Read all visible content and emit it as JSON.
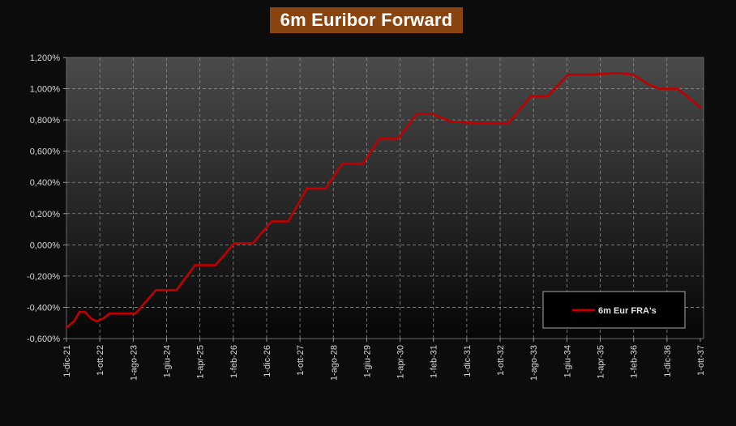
{
  "chart_data": {
    "type": "line",
    "title": "6m Euribor Forward",
    "xlabel": "",
    "ylabel": "",
    "ylim": [
      -0.6,
      1.2
    ],
    "y_ticks": [
      "-0,600%",
      "-0,400%",
      "-0,200%",
      "0,000%",
      "0,200%",
      "0,400%",
      "0,600%",
      "0,800%",
      "1,000%",
      "1,200%"
    ],
    "x_ticks": [
      "1-dic-21",
      "1-ott-22",
      "1-ago-23",
      "1-giu-24",
      "1-apr-25",
      "1-feb-26",
      "1-dic-26",
      "1-ott-27",
      "1-ago-28",
      "1-giu-29",
      "1-apr-30",
      "1-feb-31",
      "1-dic-31",
      "1-ott-32",
      "1-ago-33",
      "1-giu-34",
      "1-apr-35",
      "1-feb-36",
      "1-dic-36",
      "1-ott-37"
    ],
    "grid": true,
    "legend_position": "bottom-right",
    "series": [
      {
        "name": "6m Eur FRA's",
        "color": "#c00000",
        "points": [
          [
            0.0,
            -0.53
          ],
          [
            0.2,
            -0.49
          ],
          [
            0.35,
            -0.43
          ],
          [
            0.5,
            -0.43
          ],
          [
            0.65,
            -0.47
          ],
          [
            0.8,
            -0.49
          ],
          [
            1.0,
            -0.47
          ],
          [
            1.15,
            -0.44
          ],
          [
            1.85,
            -0.44
          ],
          [
            2.4,
            -0.29
          ],
          [
            2.95,
            -0.29
          ],
          [
            3.45,
            -0.13
          ],
          [
            4.0,
            -0.13
          ],
          [
            4.5,
            0.01
          ],
          [
            5.0,
            0.01
          ],
          [
            5.5,
            0.15
          ],
          [
            5.95,
            0.15
          ],
          [
            6.45,
            0.36
          ],
          [
            6.95,
            0.36
          ],
          [
            7.4,
            0.52
          ],
          [
            7.95,
            0.52
          ],
          [
            8.4,
            0.68
          ],
          [
            8.9,
            0.68
          ],
          [
            9.4,
            0.84
          ],
          [
            9.8,
            0.84
          ],
          [
            10.3,
            0.79
          ],
          [
            11.0,
            0.78
          ],
          [
            11.85,
            0.78
          ],
          [
            12.45,
            0.95
          ],
          [
            12.9,
            0.95
          ],
          [
            13.45,
            1.09
          ],
          [
            14.0,
            1.09
          ],
          [
            14.8,
            1.1
          ],
          [
            15.2,
            1.09
          ],
          [
            15.6,
            1.03
          ],
          [
            15.9,
            1.0
          ],
          [
            16.4,
            1.0
          ],
          [
            16.7,
            0.94
          ],
          [
            17.0,
            0.88
          ]
        ]
      }
    ]
  }
}
